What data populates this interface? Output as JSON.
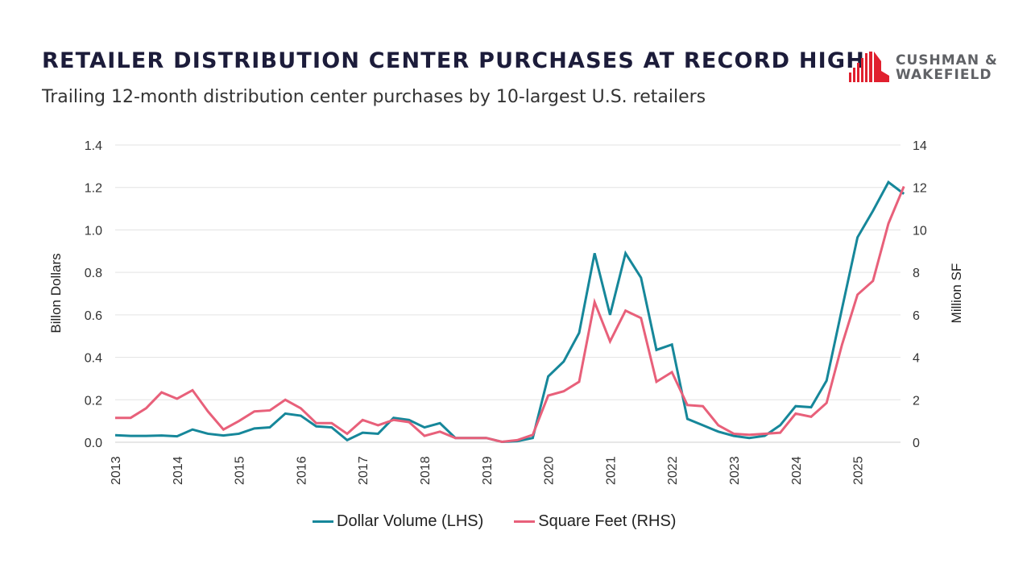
{
  "header": {
    "title": "RETAILER DISTRIBUTION CENTER PURCHASES AT RECORD HIGH",
    "subtitle": "Trailing 12-month distribution center purchases by 10-largest U.S. retailers",
    "logo": {
      "line1": "CUSHMAN &",
      "line2": "WAKEFIELD",
      "color": "#e0202e"
    }
  },
  "chart_data": {
    "type": "line",
    "title": "RETAILER DISTRIBUTION CENTER PURCHASES AT RECORD HIGH",
    "subtitle": "Trailing 12-month distribution center purchases by 10-largest U.S. retailers",
    "x_frequency": "quarterly",
    "x_start": "2013 Q1",
    "x_end": "2025 Q4",
    "x_tick_labels": [
      "2013",
      "2014",
      "2015",
      "2016",
      "2017",
      "2018",
      "2019",
      "2020",
      "2021",
      "2022",
      "2023",
      "2024",
      "2025"
    ],
    "ylabel_left": "Billon Dollars",
    "ylabel_right": "Million SF",
    "ylim_left": [
      0,
      1.4
    ],
    "ylim_right": [
      0,
      14
    ],
    "y_ticks_left": [
      "0.0",
      "0.2",
      "0.4",
      "0.6",
      "0.8",
      "1.0",
      "1.2",
      "1.4"
    ],
    "y_ticks_right": [
      "0",
      "2",
      "4",
      "6",
      "8",
      "10",
      "12",
      "14"
    ],
    "grid": true,
    "legend_position": "bottom",
    "series": [
      {
        "name": "Dollar Volume (LHS)",
        "axis": "left",
        "color": "#16879a",
        "values": [
          0.033,
          0.03,
          0.03,
          0.032,
          0.028,
          0.06,
          0.04,
          0.032,
          0.04,
          0.065,
          0.07,
          0.135,
          0.125,
          0.075,
          0.07,
          0.01,
          0.045,
          0.04,
          0.115,
          0.105,
          0.07,
          0.09,
          0.02,
          0.02,
          0.02,
          0.002,
          0.005,
          0.02,
          0.31,
          0.38,
          0.515,
          0.89,
          0.6,
          0.89,
          0.775,
          0.435,
          0.46,
          0.11,
          0.08,
          0.05,
          0.03,
          0.02,
          0.03,
          0.08,
          0.17,
          0.165,
          0.29,
          0.63,
          0.965,
          1.09,
          1.225,
          1.17
        ]
      },
      {
        "name": "Square Feet (RHS)",
        "axis": "right",
        "color": "#e8607a",
        "values": [
          1.15,
          1.15,
          1.6,
          2.35,
          2.05,
          2.45,
          1.45,
          0.6,
          1.0,
          1.45,
          1.5,
          2.0,
          1.6,
          0.9,
          0.9,
          0.4,
          1.05,
          0.8,
          1.05,
          0.95,
          0.3,
          0.5,
          0.2,
          0.2,
          0.2,
          0.02,
          0.1,
          0.35,
          2.2,
          2.4,
          2.85,
          6.6,
          4.75,
          6.2,
          5.85,
          2.85,
          3.3,
          1.75,
          1.7,
          0.8,
          0.4,
          0.35,
          0.4,
          0.45,
          1.35,
          1.2,
          1.85,
          4.6,
          6.95,
          7.6,
          10.3,
          12.05
        ]
      }
    ]
  }
}
